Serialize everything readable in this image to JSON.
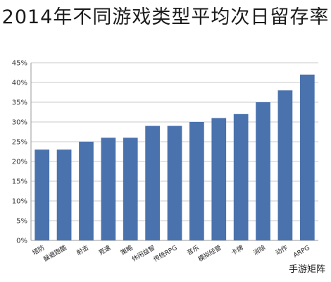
{
  "chart_data": {
    "type": "bar",
    "title": "2014年不同游戏类型平均次日留存率",
    "xlabel": "",
    "ylabel": "",
    "ylim": [
      0,
      45
    ],
    "yticks": [
      "0%",
      "5%",
      "10%",
      "15%",
      "20%",
      "25%",
      "30%",
      "35%",
      "40%",
      "45%"
    ],
    "grid": true,
    "bar_color": "#4a72ad",
    "categories": [
      "塔防",
      "躲避跑酷",
      "射击",
      "竞速",
      "策略",
      "休闲益智",
      "传统RPG",
      "音乐",
      "模拟经营",
      "卡牌",
      "消除",
      "动作",
      "ARPG"
    ],
    "values": [
      23,
      23,
      25,
      26,
      26,
      29,
      29,
      30,
      31,
      32,
      35,
      38,
      42
    ]
  },
  "watermark": "手游矩阵"
}
